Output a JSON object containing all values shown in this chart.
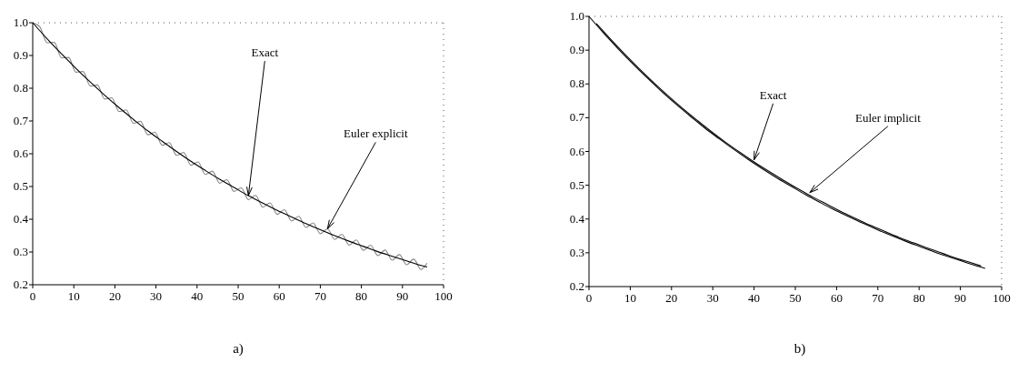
{
  "chart_data": [
    {
      "type": "line",
      "xlim": [
        0,
        100
      ],
      "ylim": [
        0.2,
        1.0
      ],
      "xticks": [
        0,
        10,
        20,
        30,
        40,
        50,
        60,
        70,
        80,
        90,
        100
      ],
      "yticks": [
        0.2,
        0.3,
        0.4,
        0.5,
        0.6,
        0.7,
        0.8,
        0.9,
        {
          "value": 1,
          "label": "1.0"
        }
      ],
      "grid": false,
      "series": [
        {
          "color": "#888888",
          "x": [
            0,
            1.75,
            3.5,
            5.25,
            7,
            8.75,
            10.5,
            12.25,
            14,
            15.75,
            17.5,
            19.25,
            21,
            22.75,
            24.5,
            26.25,
            28,
            29.75,
            31.5,
            33.25,
            35,
            36.75,
            38.5,
            40.25,
            42,
            43.75,
            45.5,
            47.25,
            49,
            50.75,
            52.5,
            54.25,
            56,
            57.75,
            59.5,
            61.25,
            63,
            64.75,
            66.5,
            68.25,
            70,
            71.75,
            73.5,
            75.25,
            77,
            78.75,
            80.5,
            82.25,
            84,
            85.75,
            87.5,
            89.25,
            91,
            92.75,
            94.5,
            96
          ],
          "values": [
            1.0,
            0.987,
            0.939,
            0.94,
            0.893,
            0.894,
            0.849,
            0.851,
            0.807,
            0.81,
            0.767,
            0.771,
            0.729,
            0.734,
            0.693,
            0.699,
            0.658,
            0.666,
            0.626,
            0.634,
            0.595,
            0.604,
            0.565,
            0.575,
            0.537,
            0.547,
            0.51,
            0.521,
            0.485,
            0.496,
            0.46,
            0.473,
            0.437,
            0.45,
            0.415,
            0.429,
            0.395,
            0.409,
            0.375,
            0.389,
            0.356,
            0.371,
            0.338,
            0.354,
            0.321,
            0.337,
            0.305,
            0.321,
            0.289,
            0.306,
            0.275,
            0.292,
            0.261,
            0.278,
            0.247,
            0.266
          ]
        },
        {
          "color": "#000000",
          "x": [
            0,
            3.5,
            7,
            10.5,
            14,
            17.5,
            21,
            24.5,
            28,
            31.5,
            35,
            38.5,
            42,
            45.5,
            49,
            52.5,
            56,
            59.5,
            63,
            66.5,
            70,
            73.5,
            77,
            80.5,
            84,
            87.5,
            91,
            94.5,
            96
          ],
          "values": [
            1.0,
            0.951,
            0.905,
            0.861,
            0.819,
            0.779,
            0.741,
            0.705,
            0.67,
            0.638,
            0.607,
            0.577,
            0.549,
            0.522,
            0.497,
            0.472,
            0.449,
            0.427,
            0.407,
            0.387,
            0.368,
            0.35,
            0.333,
            0.317,
            0.301,
            0.287,
            0.273,
            0.259,
            0.254
          ]
        }
      ],
      "annotations": [
        {
          "text": "Exact",
          "x": 52.5,
          "y": 0.472
        },
        {
          "text": "Euler explicit",
          "x": 71.75,
          "y": 0.371
        },
        "a)"
      ]
    },
    {
      "type": "line",
      "xlim": [
        0,
        100
      ],
      "ylim": [
        0.2,
        1.0
      ],
      "xticks": [
        0,
        10,
        20,
        30,
        40,
        50,
        60,
        70,
        80,
        90,
        100
      ],
      "yticks": [
        0.2,
        0.3,
        0.4,
        0.5,
        0.6,
        0.7,
        0.8,
        0.9,
        {
          "value": 1,
          "label": "1.0"
        }
      ],
      "grid": false,
      "series": [
        {
          "color": "#000000",
          "x": [
            0,
            3.5,
            7,
            10.5,
            14,
            17.5,
            21,
            24.5,
            28,
            31.5,
            35,
            38.5,
            42,
            45.5,
            49,
            52.5,
            56,
            59.5,
            63,
            66.5,
            70,
            73.5,
            77,
            80.5,
            84,
            87.5,
            91,
            94.5,
            96
          ],
          "values": [
            1.0,
            0.951,
            0.905,
            0.861,
            0.819,
            0.779,
            0.741,
            0.705,
            0.67,
            0.638,
            0.607,
            0.577,
            0.549,
            0.522,
            0.497,
            0.472,
            0.449,
            0.427,
            0.407,
            0.387,
            0.368,
            0.35,
            0.333,
            0.317,
            0.301,
            0.287,
            0.273,
            0.259,
            0.254
          ]
        },
        {
          "color": "#000000",
          "x": [
            1.75,
            5.25,
            8.75,
            12.25,
            15.75,
            19.25,
            22.75,
            26.25,
            29.75,
            33.25,
            36.75,
            40.25,
            43.75,
            47.25,
            50.75,
            54.25,
            57.75,
            61.25,
            64.75,
            68.25,
            71.75,
            75.25,
            78.75,
            82.25,
            85.75,
            89.25,
            92.75,
            95
          ],
          "values": [
            0.979,
            0.932,
            0.887,
            0.844,
            0.803,
            0.764,
            0.727,
            0.692,
            0.658,
            0.626,
            0.596,
            0.567,
            0.54,
            0.514,
            0.489,
            0.465,
            0.443,
            0.421,
            0.401,
            0.381,
            0.363,
            0.345,
            0.329,
            0.313,
            0.298,
            0.283,
            0.27,
            0.261
          ]
        }
      ],
      "annotations": [
        {
          "text": "Exact",
          "x": 40,
          "y": 0.575
        },
        {
          "text": "Euler implicit",
          "x": 53.5,
          "y": 0.478
        },
        "b)"
      ]
    }
  ]
}
